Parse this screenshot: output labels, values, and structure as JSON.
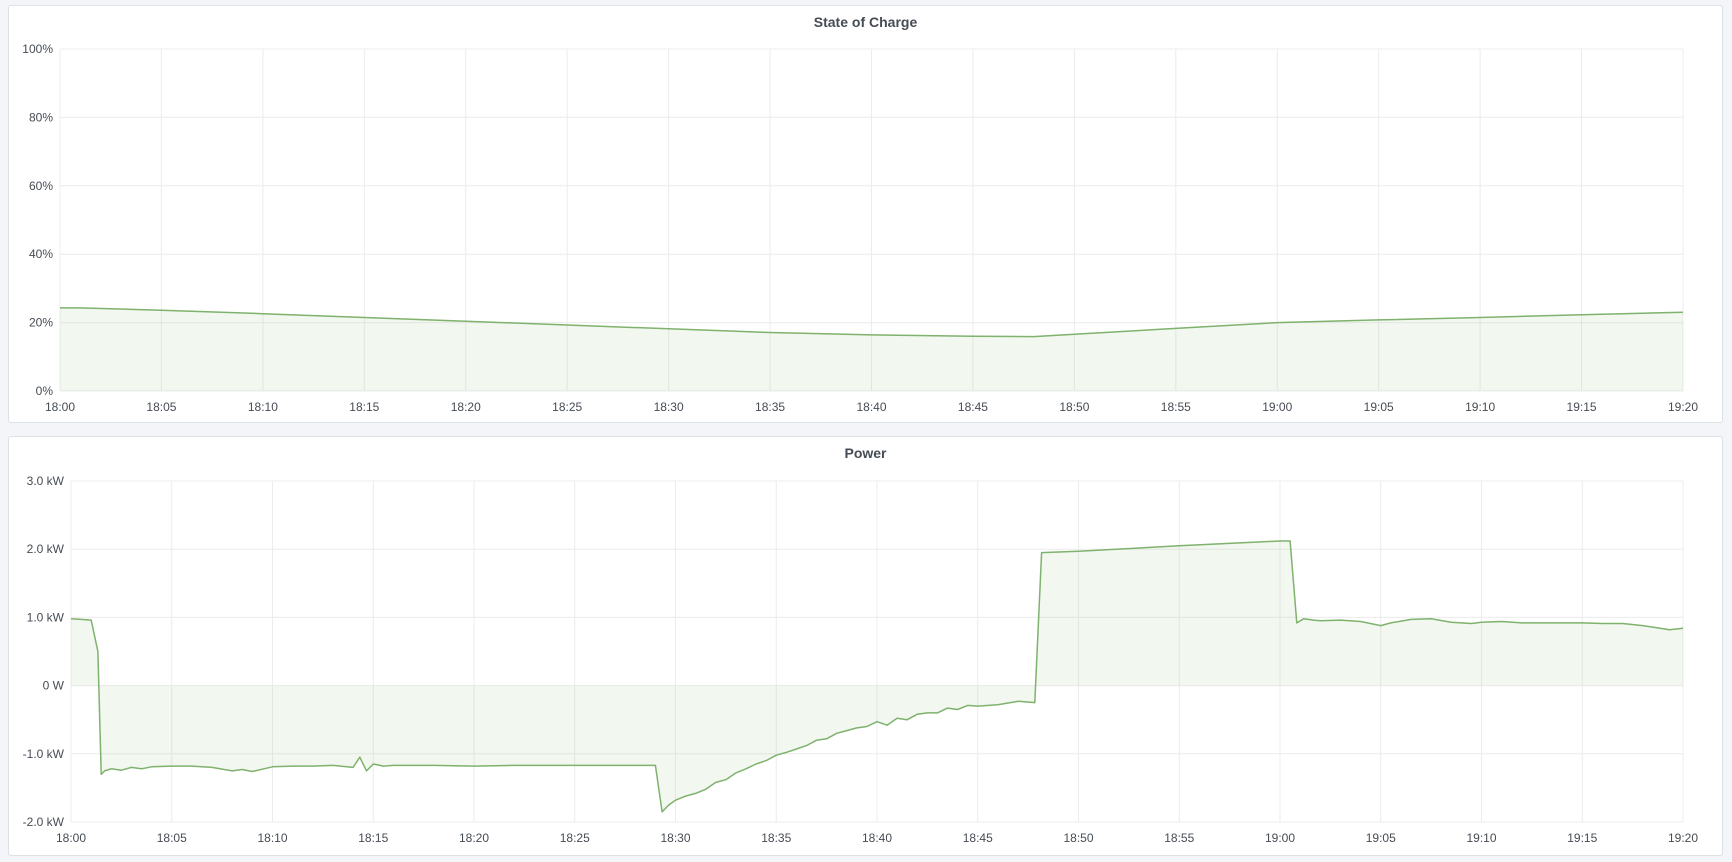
{
  "chart_data": [
    {
      "type": "area",
      "title": "State of Charge",
      "xlabel": "",
      "ylabel": "",
      "x_ticks": [
        "18:00",
        "18:05",
        "18:10",
        "18:15",
        "18:20",
        "18:25",
        "18:30",
        "18:35",
        "18:40",
        "18:45",
        "18:50",
        "18:55",
        "19:00",
        "19:05",
        "19:10",
        "19:15",
        "19:20"
      ],
      "y_ticks": [
        "0%",
        "20%",
        "40%",
        "60%",
        "80%",
        "100%"
      ],
      "xlim": [
        "18:00",
        "19:20"
      ],
      "ylim": [
        0,
        100
      ],
      "grid": true,
      "color": "#7eb26d",
      "series": [
        {
          "x": [
            "18:00",
            "18:01",
            "18:05",
            "18:10",
            "18:15",
            "18:20",
            "18:25",
            "18:30",
            "18:35",
            "18:40",
            "18:45",
            "18:48",
            "18:50",
            "18:55",
            "19:00",
            "19:05",
            "19:10",
            "19:15",
            "19:20"
          ],
          "y": [
            24.3,
            24.3,
            23.6,
            22.6,
            21.5,
            20.4,
            19.3,
            18.2,
            17.1,
            16.4,
            16.0,
            15.9,
            16.6,
            18.3,
            20.0,
            20.8,
            21.5,
            22.3,
            23.0
          ]
        }
      ]
    },
    {
      "type": "area",
      "title": "Power",
      "xlabel": "",
      "ylabel": "",
      "x_ticks": [
        "18:00",
        "18:05",
        "18:10",
        "18:15",
        "18:20",
        "18:25",
        "18:30",
        "18:35",
        "18:40",
        "18:45",
        "18:50",
        "18:55",
        "19:00",
        "19:05",
        "19:10",
        "19:15",
        "19:20"
      ],
      "y_ticks": [
        "-2.0 kW",
        "-1.0 kW",
        "0 W",
        "1.0 kW",
        "2.0 kW",
        "3.0 kW"
      ],
      "y_unit": "kW",
      "xlim": [
        "18:00",
        "19:20"
      ],
      "ylim": [
        -2,
        3
      ],
      "grid": true,
      "color": "#7eb26d",
      "series": [
        {
          "x": [
            "18:00:00",
            "18:00:30",
            "18:01:00",
            "18:01:20",
            "18:01:30",
            "18:01:40",
            "18:02:00",
            "18:02:30",
            "18:03:00",
            "18:03:30",
            "18:04:00",
            "18:05:00",
            "18:06:00",
            "18:07:00",
            "18:08:00",
            "18:08:30",
            "18:09:00",
            "18:10:00",
            "18:11:00",
            "18:12:00",
            "18:13:00",
            "18:14:00",
            "18:14:20",
            "18:14:40",
            "18:15:00",
            "18:15:30",
            "18:16:00",
            "18:18:00",
            "18:20:00",
            "18:22:00",
            "18:24:00",
            "18:26:00",
            "18:28:00",
            "18:29:00",
            "18:29:20",
            "18:29:40",
            "18:30:00",
            "18:30:30",
            "18:31:00",
            "18:31:30",
            "18:32:00",
            "18:32:30",
            "18:33:00",
            "18:33:30",
            "18:34:00",
            "18:34:30",
            "18:35:00",
            "18:35:30",
            "18:36:00",
            "18:36:30",
            "18:37:00",
            "18:37:30",
            "18:38:00",
            "18:38:30",
            "18:39:00",
            "18:39:30",
            "18:40:00",
            "18:40:30",
            "18:41:00",
            "18:41:30",
            "18:42:00",
            "18:42:30",
            "18:43:00",
            "18:43:30",
            "18:44:00",
            "18:44:30",
            "18:45:00",
            "18:46:00",
            "18:47:00",
            "18:47:50",
            "18:48:10",
            "18:50:00",
            "18:55:00",
            "19:00:00",
            "19:00:30",
            "19:00:50",
            "19:01:10",
            "19:01:40",
            "19:02:00",
            "19:03:00",
            "19:04:00",
            "19:05:00",
            "19:05:30",
            "19:06:30",
            "19:07:30",
            "19:08:30",
            "19:09:30",
            "19:10:00",
            "19:11:00",
            "19:12:00",
            "19:13:00",
            "19:14:00",
            "19:15:00",
            "19:16:00",
            "19:17:00",
            "19:18:00",
            "19:18:40",
            "19:19:20",
            "19:20:00"
          ],
          "y": [
            0.98,
            0.97,
            0.96,
            0.5,
            -1.3,
            -1.25,
            -1.22,
            -1.24,
            -1.2,
            -1.22,
            -1.19,
            -1.18,
            -1.18,
            -1.2,
            -1.25,
            -1.23,
            -1.26,
            -1.19,
            -1.18,
            -1.18,
            -1.17,
            -1.2,
            -1.05,
            -1.25,
            -1.15,
            -1.18,
            -1.17,
            -1.17,
            -1.18,
            -1.17,
            -1.17,
            -1.17,
            -1.17,
            -1.17,
            -1.85,
            -1.75,
            -1.68,
            -1.62,
            -1.58,
            -1.52,
            -1.42,
            -1.38,
            -1.28,
            -1.22,
            -1.15,
            -1.1,
            -1.02,
            -0.98,
            -0.93,
            -0.88,
            -0.8,
            -0.78,
            -0.7,
            -0.66,
            -0.62,
            -0.6,
            -0.53,
            -0.58,
            -0.48,
            -0.5,
            -0.42,
            -0.4,
            -0.4,
            -0.33,
            -0.35,
            -0.29,
            -0.3,
            -0.28,
            -0.23,
            -0.25,
            1.95,
            1.97,
            2.05,
            2.12,
            2.12,
            0.92,
            0.98,
            0.96,
            0.95,
            0.96,
            0.94,
            0.88,
            0.92,
            0.97,
            0.98,
            0.93,
            0.91,
            0.93,
            0.94,
            0.92,
            0.92,
            0.92,
            0.92,
            0.91,
            0.91,
            0.88,
            0.85,
            0.82,
            0.84
          ]
        }
      ]
    }
  ]
}
